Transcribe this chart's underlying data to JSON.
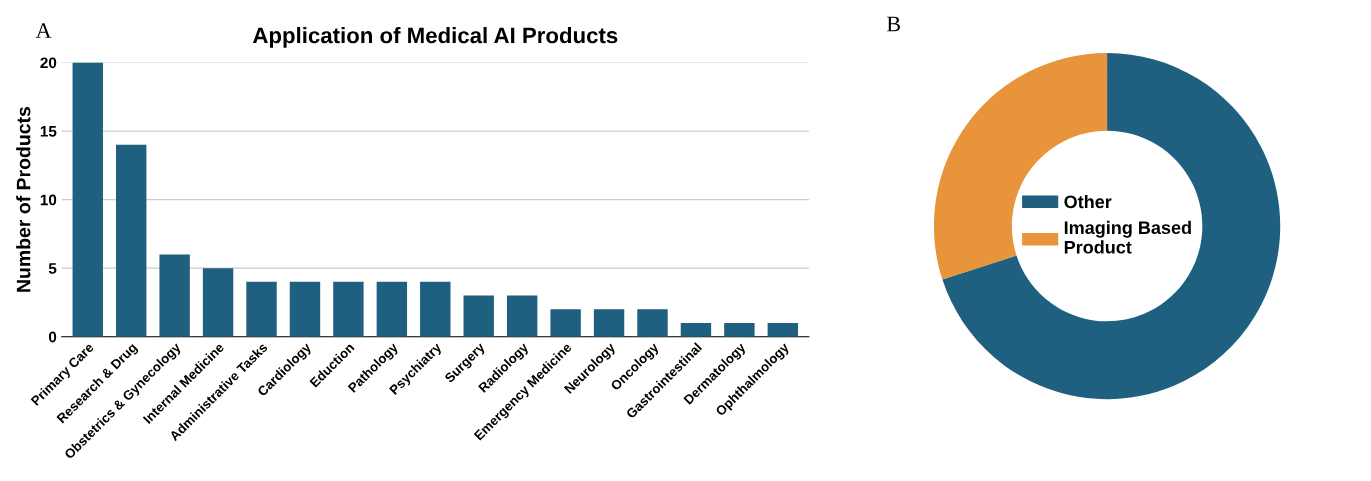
{
  "chart_data": [
    {
      "type": "bar",
      "title": "Application of Medical AI Products",
      "ylabel": "Number of Products",
      "annotations": [
        "A"
      ],
      "categories": [
        "Primary Care",
        "Research & Drug",
        "Obstetrics & Gynecology",
        "Internal Medicine",
        "Administrative Tasks",
        "Cardiology",
        "Eduction",
        "Pathology",
        "Psychiatry",
        "Surgery",
        "Radiology",
        "Emergency Medicine",
        "Neurology",
        "Oncology",
        "Gastrointestinal",
        "Dermatology",
        "Ophthalmology"
      ],
      "values": [
        20,
        14,
        6,
        5,
        4,
        4,
        4,
        4,
        4,
        3,
        3,
        2,
        2,
        2,
        1,
        1,
        1
      ],
      "color": "#1f5f80",
      "ylim": [
        0,
        20
      ],
      "yticks": [
        0,
        5,
        10,
        15,
        20
      ],
      "grid": "y"
    },
    {
      "type": "donut",
      "annotations": [
        "B"
      ],
      "categories": [
        "Other",
        "Imaging Based\nProduct"
      ],
      "values": [
        70,
        30
      ],
      "colors": [
        "#1f5f80",
        "#e8943a"
      ],
      "legend": "center"
    }
  ]
}
